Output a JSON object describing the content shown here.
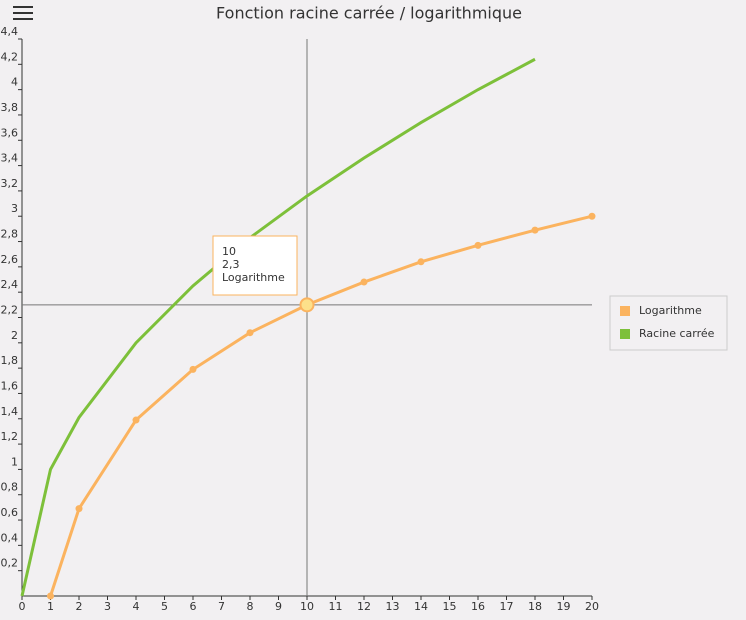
{
  "chart_data": {
    "type": "line",
    "title": "Fonction racine carrée / logarithmique",
    "series": [
      {
        "name": "Logarithme",
        "color": "#fbb35f",
        "markers": true,
        "x": [
          1,
          2,
          4,
          6,
          8,
          10,
          12,
          14,
          16,
          18,
          20
        ],
        "values": [
          0,
          0.69,
          1.39,
          1.79,
          2.08,
          2.3,
          2.48,
          2.64,
          2.77,
          2.89,
          3.0
        ]
      },
      {
        "name": "Racine carrée",
        "color": "#7dc03a",
        "markers": false,
        "x": [
          0,
          1,
          2,
          4,
          6,
          8,
          10,
          12,
          14,
          16,
          18
        ],
        "values": [
          0,
          1,
          1.41,
          2,
          2.45,
          2.83,
          3.16,
          3.46,
          3.74,
          4,
          4.24
        ]
      }
    ],
    "xlim": [
      0,
      20
    ],
    "xticks": [
      0,
      1,
      2,
      3,
      4,
      5,
      6,
      7,
      8,
      9,
      10,
      11,
      12,
      13,
      14,
      15,
      16,
      17,
      18,
      19,
      20
    ],
    "ylim": [
      0,
      4.4
    ],
    "yticks": [
      {
        "value": 0.2,
        "label": "0,2"
      },
      {
        "value": 0.4,
        "label": "0,4"
      },
      {
        "value": 0.6,
        "label": "0,6"
      },
      {
        "value": 0.8,
        "label": "0,8"
      },
      1,
      {
        "value": 1.2,
        "label": "1,2"
      },
      {
        "value": 1.4,
        "label": "1,4"
      },
      {
        "value": 1.6,
        "label": "1,6"
      },
      {
        "value": 1.8,
        "label": "1,8"
      },
      2,
      {
        "value": 2.2,
        "label": "2,2"
      },
      {
        "value": 2.4,
        "label": "2,4"
      },
      {
        "value": 2.6,
        "label": "2,6"
      },
      {
        "value": 2.8,
        "label": "2,8"
      },
      3,
      {
        "value": 3.2,
        "label": "3,2"
      },
      {
        "value": 3.4,
        "label": "3,4"
      },
      {
        "value": 3.6,
        "label": "3,6"
      },
      {
        "value": 3.8,
        "label": "3,8"
      },
      4,
      {
        "value": 4.2,
        "label": "4,2"
      },
      {
        "value": 4.4,
        "label": "4,4"
      }
    ],
    "legend": "right",
    "tooltip": {
      "x": 10,
      "y": 2.3,
      "y_label": "2,3",
      "series": "Logarithme"
    }
  }
}
